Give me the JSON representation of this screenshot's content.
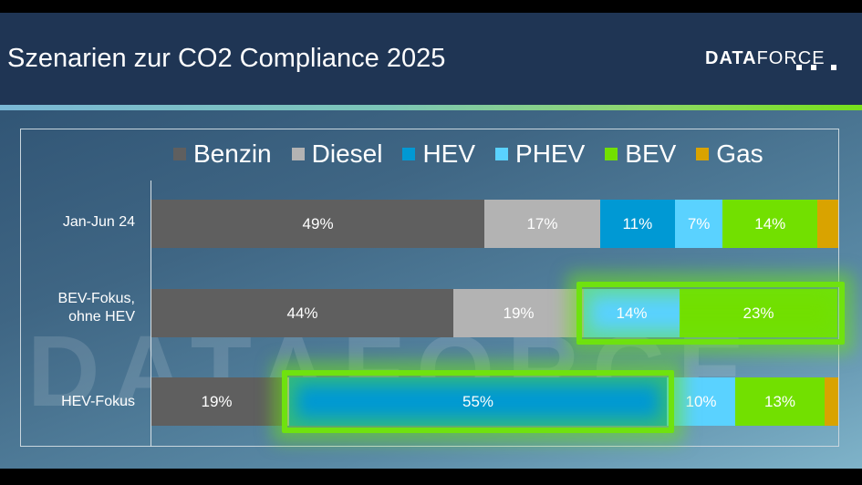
{
  "slide": {
    "title": "Szenarien zur CO2 Compliance 2025",
    "logo": {
      "bold": "DATA",
      "regular": "FORCE"
    },
    "watermark": "DATAFORCE"
  },
  "colors": {
    "Benzin": "#5f5f5f",
    "Diesel": "#b3b3b3",
    "HEV": "#0099d4",
    "PHEV": "#5ad2ff",
    "BEV": "#72e000",
    "Gas": "#d9a300",
    "highlight": "#6fe20f",
    "header": "#1f3554"
  },
  "chart_data": {
    "type": "bar",
    "orientation": "horizontal",
    "stacked": true,
    "percent": true,
    "title": "Szenarien zur CO2 Compliance 2025",
    "xlabel": "",
    "ylabel": "",
    "xlim": [
      0,
      100
    ],
    "grid": false,
    "legend_position": "top",
    "legend": [
      "Benzin",
      "Diesel",
      "HEV",
      "PHEV",
      "BEV",
      "Gas"
    ],
    "categories": [
      "Jan-Jun 24",
      "BEV-Fokus, ohne HEV",
      "HEV-Fokus"
    ],
    "series": [
      {
        "name": "Benzin",
        "values": [
          49,
          44,
          19
        ]
      },
      {
        "name": "Diesel",
        "values": [
          17,
          19,
          1
        ]
      },
      {
        "name": "HEV",
        "values": [
          11,
          0,
          55
        ]
      },
      {
        "name": "PHEV",
        "values": [
          7,
          14,
          10
        ]
      },
      {
        "name": "BEV",
        "values": [
          14,
          23,
          13
        ]
      },
      {
        "name": "Gas",
        "values": [
          3,
          0,
          2
        ]
      }
    ],
    "data_labels": [
      [
        "49%",
        "17%",
        "11%",
        "7%",
        "14%",
        ""
      ],
      [
        "44%",
        "19%",
        "",
        "14%",
        "23%",
        ""
      ],
      [
        "19%",
        "",
        "55%",
        "10%",
        "13%",
        ""
      ]
    ],
    "annotations": [
      {
        "type": "highlight-box",
        "row": "BEV-Fokus, ohne HEV",
        "segments": [
          "PHEV",
          "BEV"
        ]
      },
      {
        "type": "highlight-box",
        "row": "HEV-Fokus",
        "segments": [
          "HEV"
        ]
      }
    ]
  }
}
